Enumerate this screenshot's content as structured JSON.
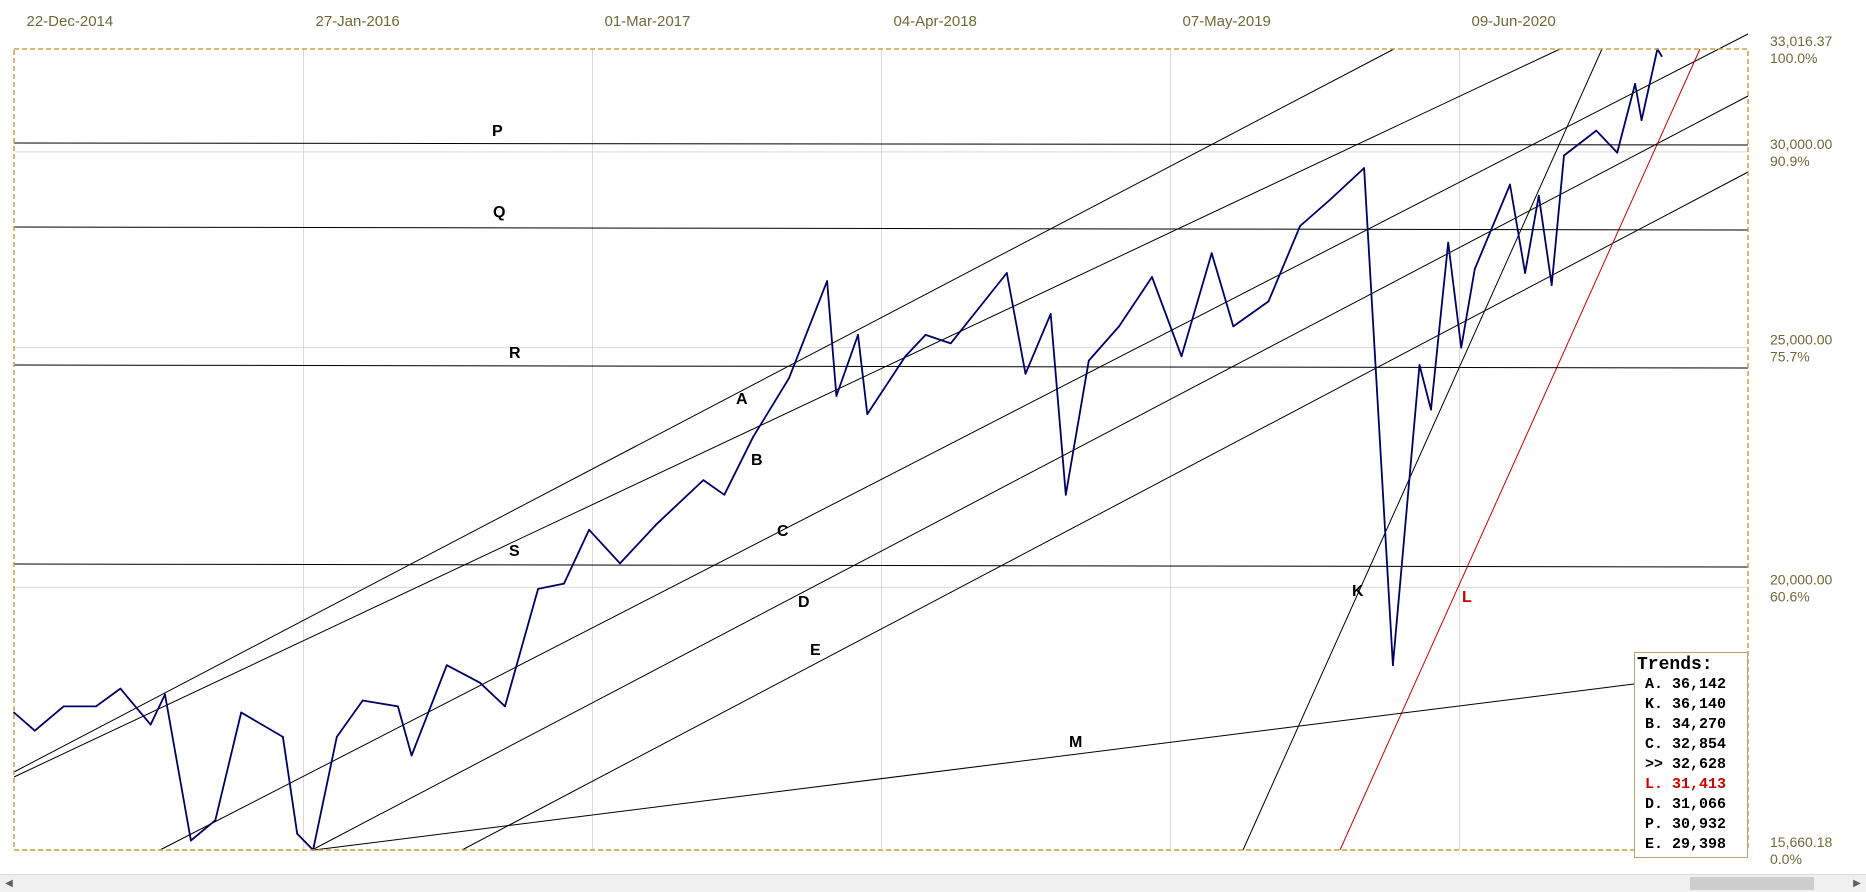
{
  "chart_data": {
    "type": "line",
    "title": "",
    "x_tick_labels": [
      "22-Dec-2014",
      "27-Jan-2016",
      "01-Mar-2017",
      "04-Apr-2018",
      "07-May-2019",
      "09-Jun-2020"
    ],
    "y_scale": "log",
    "ylim": [
      15660.18,
      33016.37
    ],
    "y_tick_labels": [
      {
        "value": 33016.37,
        "label": "33,016.37",
        "pct": "100.0%"
      },
      {
        "value": 30000,
        "label": "30,000.00",
        "pct": "90.9%"
      },
      {
        "value": 25000,
        "label": "25,000.00",
        "pct": "75.7%"
      },
      {
        "value": 20000,
        "label": "20,000.00",
        "pct": "60.6%"
      },
      {
        "value": 15660.18,
        "label": "15,660.18",
        "pct": "0.0%"
      }
    ],
    "grid": true,
    "series": [
      {
        "color": "#000066",
        "points": [
          [
            "2014-12-22",
            17800
          ],
          [
            "2015-01-20",
            17500
          ],
          [
            "2015-03-01",
            17900
          ],
          [
            "2015-04-15",
            17900
          ],
          [
            "2015-05-19",
            18200
          ],
          [
            "2015-06-30",
            17600
          ],
          [
            "2015-07-20",
            18100
          ],
          [
            "2015-08-25",
            15800
          ],
          [
            "2015-09-28",
            16100
          ],
          [
            "2015-11-03",
            17800
          ],
          [
            "2015-12-31",
            17400
          ],
          [
            "2016-01-20",
            15900
          ],
          [
            "2016-02-11",
            15660
          ],
          [
            "2016-03-15",
            17400
          ],
          [
            "2016-04-20",
            18000
          ],
          [
            "2016-06-08",
            17900
          ],
          [
            "2016-06-27",
            17100
          ],
          [
            "2016-08-15",
            18600
          ],
          [
            "2016-09-30",
            18300
          ],
          [
            "2016-11-04",
            17900
          ],
          [
            "2016-12-20",
            19970
          ],
          [
            "2017-01-25",
            20070
          ],
          [
            "2017-03-01",
            21100
          ],
          [
            "2017-04-13",
            20450
          ],
          [
            "2017-06-02",
            21200
          ],
          [
            "2017-08-07",
            22100
          ],
          [
            "2017-09-05",
            21800
          ],
          [
            "2017-10-15",
            23000
          ],
          [
            "2017-12-04",
            24300
          ],
          [
            "2018-01-26",
            26600
          ],
          [
            "2018-02-08",
            23900
          ],
          [
            "2018-03-10",
            25300
          ],
          [
            "2018-03-23",
            23500
          ],
          [
            "2018-05-15",
            24800
          ],
          [
            "2018-06-12",
            25300
          ],
          [
            "2018-07-17",
            25100
          ],
          [
            "2018-10-03",
            26800
          ],
          [
            "2018-10-29",
            24400
          ],
          [
            "2018-12-03",
            25800
          ],
          [
            "2018-12-24",
            21800
          ],
          [
            "2019-01-25",
            24700
          ],
          [
            "2019-03-08",
            25500
          ],
          [
            "2019-04-23",
            26700
          ],
          [
            "2019-06-03",
            24800
          ],
          [
            "2019-07-15",
            27300
          ],
          [
            "2019-08-14",
            25500
          ],
          [
            "2019-10-02",
            26100
          ],
          [
            "2019-11-15",
            28000
          ],
          [
            "2019-12-27",
            28700
          ],
          [
            "2020-02-12",
            29550
          ],
          [
            "2020-03-23",
            18600
          ],
          [
            "2020-04-29",
            24600
          ],
          [
            "2020-05-15",
            23600
          ],
          [
            "2020-06-08",
            27570
          ],
          [
            "2020-06-26",
            25000
          ],
          [
            "2020-07-15",
            26900
          ],
          [
            "2020-09-02",
            29100
          ],
          [
            "2020-09-23",
            26800
          ],
          [
            "2020-10-12",
            28800
          ],
          [
            "2020-10-30",
            26500
          ],
          [
            "2020-11-16",
            29900
          ],
          [
            "2020-12-31",
            30600
          ],
          [
            "2021-01-29",
            29980
          ],
          [
            "2021-02-23",
            31960
          ],
          [
            "2021-03-04",
            30900
          ],
          [
            "2021-03-26",
            33016
          ],
          [
            "2021-04-01",
            32800
          ]
        ]
      }
    ],
    "trend_lines": [
      {
        "label": "A",
        "color": "#000000"
      },
      {
        "label": "B",
        "color": "#000000"
      },
      {
        "label": "C",
        "color": "#000000"
      },
      {
        "label": "D",
        "color": "#000000"
      },
      {
        "label": "E",
        "color": "#000000"
      },
      {
        "label": "K",
        "color": "#000000"
      },
      {
        "label": "L",
        "color": "#cc0000"
      },
      {
        "label": "M",
        "color": "#000000"
      },
      {
        "label": "P",
        "color": "#000000"
      },
      {
        "label": "Q",
        "color": "#000000"
      },
      {
        "label": "R",
        "color": "#000000"
      },
      {
        "label": "S",
        "color": "#000000"
      }
    ]
  },
  "trends_panel": {
    "title": "Trends:",
    "rows": [
      {
        "label": "A.",
        "value": "36,142",
        "color": "#000000"
      },
      {
        "label": "K.",
        "value": "36,140",
        "color": "#000000"
      },
      {
        "label": "B.",
        "value": "34,270",
        "color": "#000000"
      },
      {
        "label": "C.",
        "value": "32,854",
        "color": "#000000"
      },
      {
        "label": ">>",
        "value": "32,628",
        "color": "#000000"
      },
      {
        "label": "L.",
        "value": "31,413",
        "color": "#cc0000"
      },
      {
        "label": "D.",
        "value": "31,066",
        "color": "#000000"
      },
      {
        "label": "P.",
        "value": "30,932",
        "color": "#000000"
      },
      {
        "label": "E.",
        "value": "29,398",
        "color": "#000000"
      }
    ]
  },
  "scrollbar": {
    "left_arrow": "◀",
    "right_arrow": "▶"
  },
  "colors": {
    "frame": "#c8a040",
    "grid": "#d9d9d9",
    "price": "#000066",
    "trend": "#000000",
    "trend_red": "#cc0000",
    "axis_text": "#6b6b3a"
  }
}
